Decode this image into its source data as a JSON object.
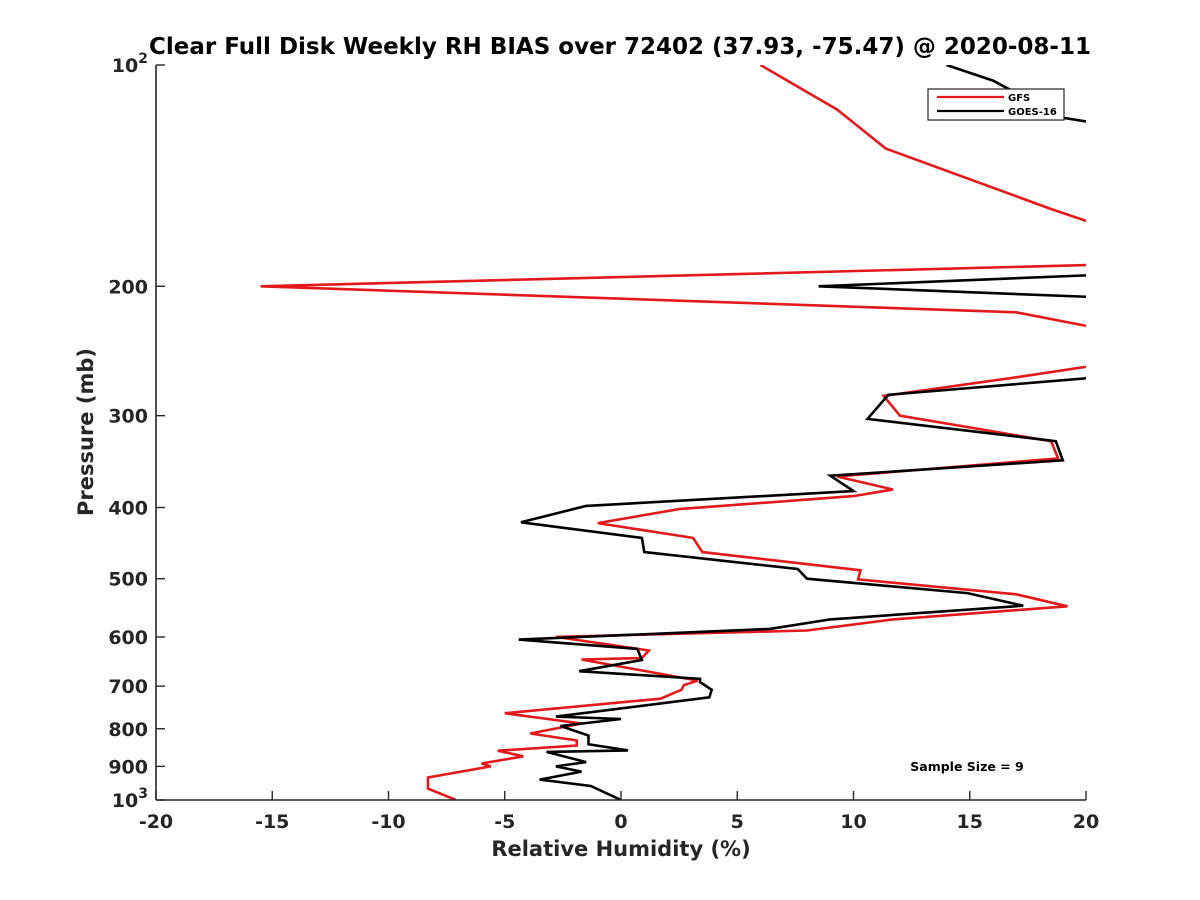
{
  "chart_data": {
    "type": "line",
    "title": "Clear Full Disk Weekly RH BIAS over 72402 (37.93, -75.47) @ 2020-08-11",
    "xlabel": "Relative Humidity (%)",
    "ylabel": "Pressure (mb)",
    "xlim": [
      -20,
      20
    ],
    "ylim": [
      100,
      1000
    ],
    "yscale": "log",
    "yreversed": true,
    "grid": false,
    "legend_position": "top-right",
    "x_ticks": [
      -20,
      -15,
      -10,
      -5,
      0,
      5,
      10,
      15,
      20
    ],
    "x_tick_labels": [
      "-20",
      "-15",
      "-10",
      "-5",
      "0",
      "5",
      "10",
      "15",
      "20"
    ],
    "y_ticks": [
      100,
      200,
      300,
      400,
      500,
      600,
      700,
      800,
      900,
      1000
    ],
    "y_tick_labels": [
      {
        "base": "10",
        "exp": "2"
      },
      {
        "base": "200",
        "exp": ""
      },
      {
        "base": "300",
        "exp": ""
      },
      {
        "base": "400",
        "exp": ""
      },
      {
        "base": "500",
        "exp": ""
      },
      {
        "base": "600",
        "exp": ""
      },
      {
        "base": "700",
        "exp": ""
      },
      {
        "base": "800",
        "exp": ""
      },
      {
        "base": "900",
        "exp": ""
      },
      {
        "base": "10",
        "exp": "3"
      }
    ],
    "annotation": "Sample Size = 9",
    "series": [
      {
        "name": "GFS",
        "color": "#e31a1c",
        "points": [
          [
            6.0,
            100
          ],
          [
            9.3,
            115
          ],
          [
            11.4,
            130
          ],
          [
            18.5,
            157
          ],
          [
            20.5,
            165
          ],
          [
            20.5,
            187
          ],
          [
            -15.5,
            200
          ],
          [
            17.0,
            217
          ],
          [
            20.5,
            228
          ],
          [
            20.5,
            256
          ],
          [
            17.0,
            266
          ],
          [
            11.3,
            282
          ],
          [
            12.0,
            300
          ],
          [
            18.5,
            325
          ],
          [
            18.8,
            343
          ],
          [
            9.3,
            363
          ],
          [
            11.7,
            378
          ],
          [
            10.0,
            386
          ],
          [
            2.5,
            402
          ],
          [
            -1.0,
            420
          ],
          [
            3.1,
            440
          ],
          [
            3.5,
            460
          ],
          [
            10.3,
            487
          ],
          [
            10.2,
            501
          ],
          [
            17.0,
            525
          ],
          [
            19.2,
            545
          ],
          [
            11.7,
            568
          ],
          [
            8.0,
            588
          ],
          [
            -2.8,
            600
          ],
          [
            1.2,
            626
          ],
          [
            0.9,
            641
          ],
          [
            -1.7,
            644
          ],
          [
            3.3,
            688
          ],
          [
            2.7,
            698
          ],
          [
            2.6,
            708
          ],
          [
            1.7,
            728
          ],
          [
            -5.0,
            762
          ],
          [
            -1.7,
            787
          ],
          [
            -3.9,
            812
          ],
          [
            -1.9,
            830
          ],
          [
            -1.9,
            843
          ],
          [
            -5.3,
            857
          ],
          [
            -4.2,
            872
          ],
          [
            -6.0,
            892
          ],
          [
            -5.6,
            900
          ],
          [
            -8.3,
            932
          ],
          [
            -8.3,
            965
          ],
          [
            -7.1,
            1000
          ]
        ]
      },
      {
        "name": "GOES-16",
        "color": "#000000",
        "points": [
          [
            14.0,
            100
          ],
          [
            16.0,
            105
          ],
          [
            19.0,
            118
          ],
          [
            20.5,
            120
          ],
          [
            20.5,
            193
          ],
          [
            8.5,
            200
          ],
          [
            20.5,
            207
          ],
          [
            20.5,
            266
          ],
          [
            11.5,
            281
          ],
          [
            10.6,
            303
          ],
          [
            18.7,
            325
          ],
          [
            19.0,
            345
          ],
          [
            9.0,
            362
          ],
          [
            10.0,
            380
          ],
          [
            -1.5,
            398
          ],
          [
            -4.3,
            419
          ],
          [
            0.9,
            440
          ],
          [
            1.0,
            460
          ],
          [
            7.6,
            485
          ],
          [
            8.0,
            500
          ],
          [
            14.9,
            523
          ],
          [
            17.3,
            544
          ],
          [
            9.0,
            568
          ],
          [
            6.4,
            585
          ],
          [
            -4.4,
            605
          ],
          [
            0.7,
            623
          ],
          [
            0.9,
            645
          ],
          [
            -1.8,
            668
          ],
          [
            3.4,
            684
          ],
          [
            3.4,
            691
          ],
          [
            3.9,
            708
          ],
          [
            3.8,
            725
          ],
          [
            -2.8,
            770
          ],
          [
            0.0,
            776
          ],
          [
            -2.6,
            793
          ],
          [
            -1.4,
            817
          ],
          [
            -1.4,
            840
          ],
          [
            0.3,
            856
          ],
          [
            -3.2,
            860
          ],
          [
            -1.5,
            888
          ],
          [
            -2.8,
            900
          ],
          [
            -1.7,
            915
          ],
          [
            -3.5,
            938
          ],
          [
            -1.3,
            957
          ],
          [
            0.0,
            1000
          ]
        ]
      }
    ]
  }
}
